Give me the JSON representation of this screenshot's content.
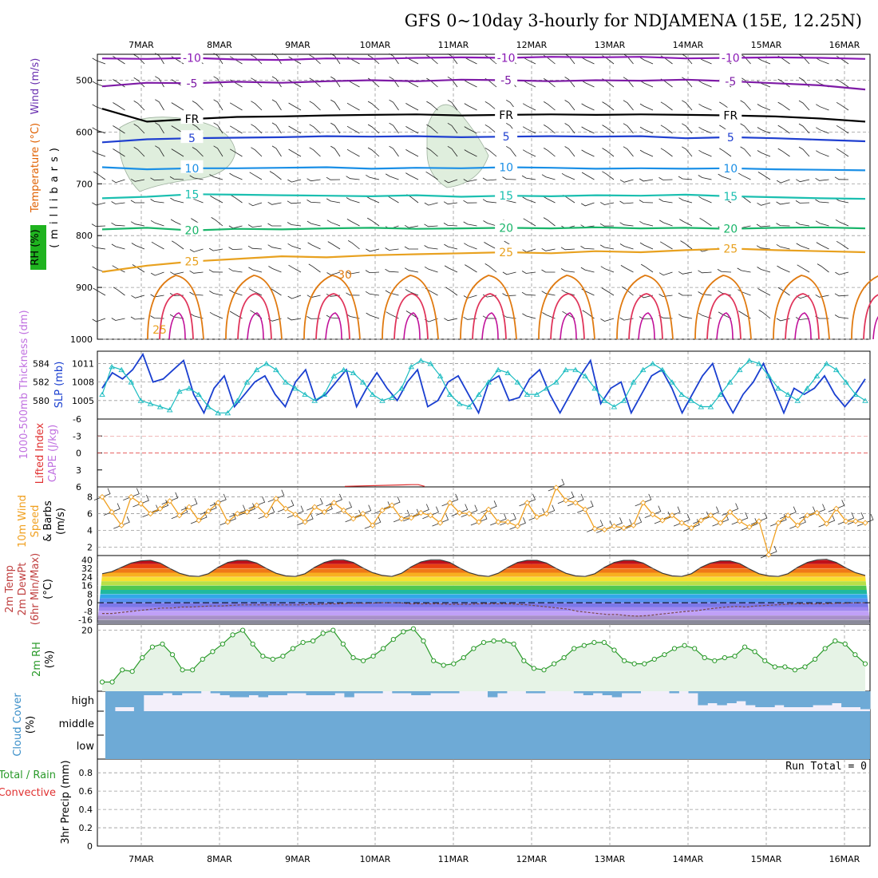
{
  "page": {
    "title": "GFS 0~10day 3-hourly for NDJAMENA (15E, 12.25N)"
  },
  "chart_data": [
    {
      "panel": "upper-air",
      "type": "line",
      "x_dates": [
        "7MAR",
        "8MAR",
        "9MAR",
        "10MAR",
        "11MAR",
        "12MAR",
        "13MAR",
        "14MAR",
        "15MAR",
        "16MAR"
      ],
      "ylabel_parts": [
        "RH (%)",
        "Temperature (°C)",
        "Wind (m/s)",
        "(millibars)"
      ],
      "ylabel_colors": [
        "#000000",
        "#e06000",
        "#6a2fb0",
        "#000000"
      ],
      "y_ticks": [
        "500",
        "600",
        "700",
        "800",
        "900",
        "1000"
      ],
      "ylim": [
        1000,
        450
      ],
      "contours": [
        {
          "name": "-10",
          "label": "-10",
          "color": "#8a19b5",
          "levels": [
            458,
            459,
            457,
            460,
            461,
            458,
            459,
            457,
            456,
            457,
            455,
            456,
            455,
            458,
            457,
            456,
            457,
            459
          ]
        },
        {
          "name": "-5",
          "label": "-5",
          "color": "#7e1ba6",
          "levels": [
            512,
            505,
            506,
            503,
            505,
            502,
            500,
            502,
            499,
            500,
            502,
            500,
            501,
            499,
            502,
            506,
            510,
            518
          ]
        },
        {
          "name": "FR",
          "label": "FR",
          "color": "#000000",
          "levels": [
            555,
            580,
            575,
            571,
            570,
            568,
            567,
            566,
            568,
            567,
            566,
            567,
            566,
            567,
            568,
            570,
            574,
            580
          ]
        },
        {
          "name": "5",
          "label": "5",
          "color": "#1f3fd0",
          "levels": [
            620,
            614,
            612,
            611,
            610,
            608,
            609,
            608,
            610,
            609,
            608,
            609,
            608,
            612,
            610,
            612,
            615,
            618
          ]
        },
        {
          "name": "10",
          "label": "10",
          "color": "#1a8fe6",
          "levels": [
            668,
            672,
            670,
            670,
            669,
            668,
            671,
            669,
            670,
            668,
            669,
            671,
            670,
            671,
            670,
            672,
            673,
            674
          ]
        },
        {
          "name": "15",
          "label": "15",
          "color": "#1bbfb0",
          "levels": [
            728,
            725,
            720,
            721,
            722,
            723,
            724,
            722,
            725,
            723,
            724,
            722,
            723,
            721,
            724,
            726,
            728,
            729
          ]
        },
        {
          "name": "20",
          "label": "20",
          "color": "#19b56a",
          "levels": [
            788,
            785,
            790,
            787,
            788,
            786,
            785,
            787,
            786,
            785,
            786,
            784,
            786,
            785,
            787,
            785,
            784,
            786
          ]
        },
        {
          "name": "25",
          "label": "25",
          "color": "#e8a11f",
          "levels": [
            870,
            858,
            850,
            845,
            840,
            842,
            838,
            836,
            834,
            832,
            834,
            830,
            832,
            828,
            825,
            828,
            830,
            832
          ]
        }
      ],
      "annotation_labels": [
        "30",
        "25"
      ]
    },
    {
      "panel": "sfc-thickness",
      "type": "line",
      "ylabel": "1000-500mb Thickness (dm)",
      "y2label": "SLP (mb)",
      "left_ticks": [
        "584",
        "582",
        "580"
      ],
      "right_ticks": [
        "1011",
        "1008",
        "1005"
      ],
      "y2lim": [
        1002,
        1013
      ],
      "series": [
        {
          "name": "SLP (mb)",
          "color": "#1a3fd0",
          "values": [
            1007,
            1009.5,
            1008.5,
            1010,
            1012.5,
            1008,
            1008.5,
            1010,
            1011.5,
            1006,
            1003,
            1007,
            1009,
            1004,
            1006,
            1008,
            1009,
            1006,
            1004,
            1008,
            1010,
            1005,
            1006,
            1008,
            1010,
            1004,
            1007,
            1009.5,
            1007,
            1005,
            1008,
            1010,
            1004,
            1005,
            1008,
            1009,
            1006,
            1003,
            1008,
            1009,
            1005,
            1005.5,
            1008.5,
            1010,
            1006,
            1003,
            1006,
            1009,
            1011.5,
            1004.5,
            1007,
            1008,
            1003,
            1006,
            1009,
            1010,
            1007,
            1003,
            1006,
            1009,
            1011,
            1006,
            1003,
            1006,
            1008,
            1011,
            1007,
            1003,
            1007,
            1006,
            1007,
            1009,
            1006,
            1004,
            1006,
            1008.5
          ]
        },
        {
          "name": "1000-500mb Thickness (dm)",
          "color": "#1abcc0",
          "values": [
            1006,
            1010.5,
            1010,
            1008,
            1005,
            1004.5,
            1004,
            1003.5,
            1006.5,
            1007,
            1006,
            1004,
            1003,
            1003,
            1005,
            1008,
            1010,
            1011,
            1010,
            1008,
            1007,
            1006,
            1005,
            1006,
            1009,
            1010,
            1009.5,
            1008,
            1006,
            1005,
            1005.5,
            1007,
            1010.5,
            1011.5,
            1011,
            1009,
            1006,
            1004.5,
            1004,
            1006,
            1008,
            1010,
            1009.5,
            1008,
            1006,
            1006,
            1007,
            1008,
            1010,
            1010,
            1009,
            1007,
            1005,
            1004,
            1005,
            1008,
            1010,
            1011,
            1010,
            1008,
            1006,
            1005,
            1004,
            1004,
            1006,
            1008,
            1010,
            1011.5,
            1011,
            1009,
            1007,
            1006,
            1005,
            1007,
            1009,
            1011,
            1010,
            1008,
            1006,
            1005
          ]
        }
      ]
    },
    {
      "panel": "cape-li",
      "type": "line",
      "ylabel_parts": [
        "Lifted Index",
        "CAPE (J/kg)"
      ],
      "ylabel_colors": [
        "#e03030",
        "#c070e0"
      ],
      "y_ticks": [
        "-6",
        "-3",
        "0",
        "3",
        "6"
      ],
      "ylim": [
        6,
        -6
      ],
      "series": [
        {
          "name": "Lifted Index",
          "color": "#e03030",
          "values": [
            5.9,
            5.6,
            5.6,
            5.9
          ]
        }
      ]
    },
    {
      "panel": "wind10m",
      "type": "line",
      "ylabel_parts": [
        "10m Wind",
        "Speed",
        "& Barbs",
        "(m/s)"
      ],
      "ylabel_colors": [
        "#f0a020",
        "#f0a020",
        "#000000",
        "#000000"
      ],
      "y_ticks": [
        "8",
        "6",
        "4",
        "2"
      ],
      "ylim": [
        1,
        9.2
      ],
      "series": [
        {
          "name": "10m Wind Speed",
          "color": "#f0a020",
          "values": [
            8,
            6.2,
            4.6,
            8,
            7.2,
            6,
            6.6,
            7.5,
            5.8,
            6.8,
            5.2,
            6.3,
            7.3,
            5,
            6,
            6.2,
            7,
            5.8,
            7.8,
            6.6,
            5.9,
            5,
            6.8,
            6.2,
            7.3,
            6.4,
            5.4,
            6,
            4.6,
            6.4,
            7,
            5.4,
            5.5,
            6.1,
            5.8,
            4.9,
            7.3,
            6.1,
            6,
            5,
            6.5,
            5,
            5,
            4.5,
            7.3,
            5.6,
            6,
            9.1,
            7.6,
            7.3,
            6.5,
            4.2,
            4.1,
            4.5,
            4.3,
            4.6,
            7.3,
            5.9,
            5.2,
            5.8,
            4.9,
            4.3,
            5.2,
            5.8,
            4.9,
            6.2,
            5.1,
            4.4,
            5.1,
            1.1,
            4.9,
            5.8,
            4.6,
            5.8,
            6.1,
            4.8,
            6.6,
            5.1,
            5.1,
            4.9
          ]
        }
      ]
    },
    {
      "panel": "temp2m",
      "type": "area",
      "ylabel_parts": [
        "2m Temp",
        "2m DewPt",
        "(6hr Min/Max)",
        "(°C)"
      ],
      "ylabel_colors": [
        "#c04040",
        "#c04040",
        "#c04040",
        "#000000"
      ],
      "y_ticks": [
        "40",
        "32",
        "24",
        "16",
        "8",
        "0",
        "-8",
        "-16"
      ],
      "ylim": [
        -20,
        44
      ],
      "series": [
        {
          "name": "2m Temp",
          "color": "#3a3a3a",
          "values": [
            27,
            29,
            33,
            37,
            39,
            39.5,
            37,
            32,
            27.5,
            25,
            24.5,
            27,
            33,
            37.5,
            39.5,
            39.5,
            37,
            32,
            27.5,
            25,
            24.5,
            27,
            33,
            37.5,
            40,
            40,
            37.5,
            32.5,
            28,
            25.5,
            24.5,
            27.5,
            33.5,
            38,
            40,
            40,
            37.5,
            32.5,
            28,
            25.5,
            24.5,
            27.5,
            33,
            37.5,
            39.5,
            39.5,
            37,
            32,
            27.5,
            25,
            24.5,
            27,
            33,
            37.5,
            39.5,
            39.5,
            37,
            32,
            27.5,
            25,
            24.5,
            27,
            33,
            37,
            39,
            39,
            36.5,
            31.5,
            27,
            25,
            24.5,
            27,
            33,
            37.5,
            40,
            40.5,
            37.5,
            32.5,
            28,
            25.5
          ]
        },
        {
          "name": "2m DewPt",
          "color": "#7a4a4a",
          "values": [
            -10,
            -10,
            -9,
            -8,
            -7,
            -6,
            -5,
            -5,
            -4,
            -4,
            -3.5,
            -3,
            -3,
            -2.5,
            -2,
            -2,
            -2,
            -2,
            -2,
            -2,
            -2,
            -1.5,
            -1.5,
            -1,
            -1,
            -0.5,
            -0.5,
            -0.5,
            0,
            0,
            0,
            -1,
            -1,
            -1,
            -1,
            -1.5,
            -1.5,
            -1.5,
            -1,
            -1,
            -1,
            -1,
            -1.5,
            -2,
            -3,
            -4,
            -5,
            -6,
            -8,
            -9,
            -10,
            -11,
            -11,
            -12,
            -12.5,
            -12,
            -11,
            -10,
            -9,
            -8,
            -7.5,
            -6,
            -5,
            -4,
            -3.5,
            -4,
            -3,
            -2.5,
            -2,
            -1.5,
            -1,
            -1,
            -1,
            -1,
            -0.5,
            -0.5,
            0,
            0
          ]
        }
      ]
    },
    {
      "panel": "rh2m",
      "type": "area",
      "ylabel_parts": [
        "2m RH",
        "(%)"
      ],
      "ylabel_colors": [
        "#2a9a2a",
        "#000000"
      ],
      "y_ticks": [
        "20"
      ],
      "ylim": [
        0,
        22
      ],
      "series": [
        {
          "name": "2m RH",
          "color": "#2a9a2a",
          "values": [
            3,
            3,
            7,
            6.5,
            11,
            14.5,
            15.5,
            12,
            7,
            7,
            10.5,
            13,
            15.5,
            18.5,
            20,
            15.5,
            11.5,
            10.5,
            11.5,
            14,
            16,
            16.5,
            19,
            20,
            15.5,
            11,
            10,
            11.5,
            14,
            17,
            19.5,
            20.5,
            16.5,
            10,
            8.5,
            9,
            11,
            14,
            16,
            16.5,
            16.5,
            15.5,
            10,
            7.5,
            7,
            9,
            11,
            14,
            15,
            16,
            16,
            13.5,
            10,
            9,
            9,
            10.5,
            12,
            14,
            15,
            14,
            11,
            10,
            11,
            11.5,
            14.5,
            13,
            10,
            8,
            8,
            7,
            8,
            10.5,
            14,
            16.5,
            15.5,
            12,
            9
          ]
        }
      ]
    },
    {
      "panel": "cloud",
      "type": "bar",
      "ylabel_parts": [
        "Cloud Cover",
        "(%)"
      ],
      "ylabel_colors": [
        "#3a8ec8",
        "#000000"
      ],
      "y_ticks": [
        "high",
        "middle",
        "low"
      ],
      "series": [
        {
          "name": "high",
          "color": "#6eaad6",
          "values": [
            100,
            80,
            80,
            100,
            20,
            20,
            10,
            20,
            10,
            10,
            0,
            10,
            20,
            30,
            30,
            20,
            30,
            20,
            20,
            10,
            10,
            20,
            20,
            20,
            10,
            30,
            10,
            10,
            10,
            0,
            10,
            10,
            20,
            20,
            10,
            10,
            10,
            0,
            0,
            0,
            30,
            10,
            0,
            0,
            10,
            10,
            0,
            0,
            0,
            10,
            20,
            10,
            20,
            30,
            10,
            10,
            0,
            0,
            0,
            10,
            0,
            10,
            70,
            60,
            70,
            60,
            50,
            70,
            80,
            80,
            70,
            80,
            80,
            80,
            70,
            70,
            60,
            80,
            80,
            90
          ]
        }
      ]
    },
    {
      "panel": "precip",
      "type": "bar",
      "ylabel_parts": [
        "Total / Rain",
        "Convective",
        "3hr Precip (mm)"
      ],
      "ylabel_colors": [
        "#2a9a2a",
        "#e03030",
        "#000000"
      ],
      "y_ticks": [
        "0.8",
        "0.6",
        "0.4",
        "0.2",
        "0"
      ],
      "ylim": [
        0,
        0.95
      ],
      "run_total_label": "Run Total = 0",
      "series": [
        {
          "name": "Total / Rain",
          "color": "#2a9a2a",
          "values": []
        },
        {
          "name": "Convective",
          "color": "#e03030",
          "values": []
        }
      ]
    }
  ]
}
